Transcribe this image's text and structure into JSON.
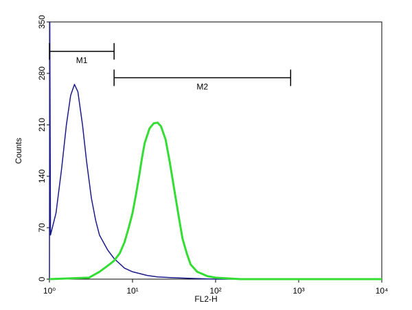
{
  "chart_data": {
    "type": "line",
    "log_x": true,
    "xlabel": "FL2-H",
    "ylabel": "Counts",
    "xlim": [
      1,
      10000
    ],
    "ylim": [
      0,
      350
    ],
    "xticks": [
      {
        "value": 1,
        "label": "10⁰"
      },
      {
        "value": 10,
        "label": "10¹"
      },
      {
        "value": 100,
        "label": "10²"
      },
      {
        "value": 1000,
        "label": "10³"
      },
      {
        "value": 10000,
        "label": "10⁴"
      }
    ],
    "yticks": [
      0,
      70,
      140,
      210,
      280,
      350
    ],
    "series": [
      {
        "color": "#1a1a8c",
        "width": 1.5,
        "x": [
          1,
          1.01,
          1.03,
          1.2,
          1.4,
          1.6,
          1.8,
          2.0,
          2.2,
          2.5,
          2.8,
          3.2,
          3.6,
          4,
          5,
          6,
          8,
          10,
          15,
          20,
          30,
          50,
          100,
          10000
        ],
        "values": [
          0,
          350,
          60,
          90,
          150,
          210,
          250,
          265,
          255,
          210,
          160,
          110,
          80,
          60,
          40,
          28,
          15,
          10,
          5,
          3,
          2,
          1,
          0,
          0
        ]
      },
      {
        "color": "#33dd33",
        "width": 3,
        "x": [
          1,
          3,
          4,
          5,
          6,
          7,
          8,
          9,
          10,
          11,
          12,
          13,
          14,
          16,
          18,
          20,
          22,
          25,
          28,
          32,
          36,
          40,
          45,
          50,
          60,
          80,
          100,
          200,
          10000
        ],
        "values": [
          0,
          2,
          10,
          18,
          25,
          35,
          50,
          70,
          90,
          115,
          140,
          165,
          185,
          205,
          212,
          213,
          208,
          190,
          160,
          120,
          85,
          55,
          35,
          20,
          10,
          4,
          2,
          0,
          0
        ]
      }
    ],
    "gates": [
      {
        "label": "M1",
        "range": [
          1,
          6
        ],
        "y": 310
      },
      {
        "label": "M2",
        "range": [
          6,
          800
        ],
        "y": 274
      }
    ]
  }
}
